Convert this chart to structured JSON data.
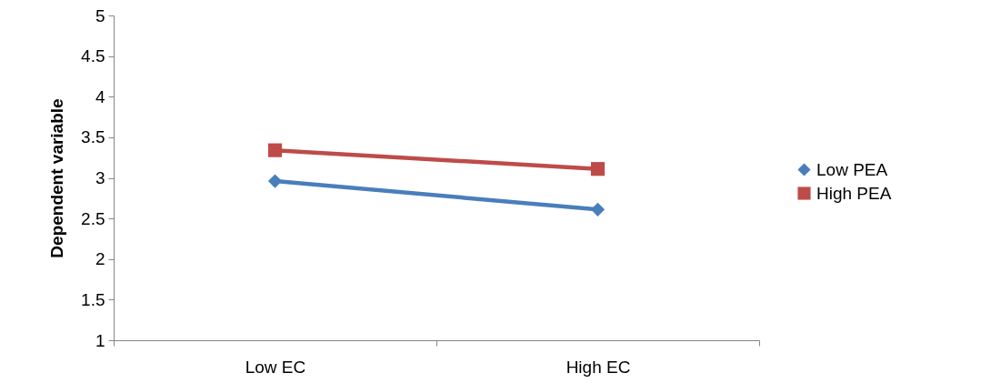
{
  "chart_data": {
    "type": "line",
    "ylabel": "Dependent variable",
    "categories": [
      "Low EC",
      "High EC"
    ],
    "series": [
      {
        "name": "Low PEA",
        "color": "#4a7ebb",
        "values": [
          2.96,
          2.61
        ],
        "marker": "diamond"
      },
      {
        "name": "High PEA",
        "color": "#be4b48",
        "values": [
          3.34,
          3.11
        ],
        "marker": "square"
      }
    ],
    "ylim": [
      1,
      5
    ],
    "yticks": [
      1,
      1.5,
      2,
      2.5,
      3,
      3.5,
      4,
      4.5,
      5
    ],
    "grid": false,
    "legend": "right",
    "line_style": "solid"
  }
}
